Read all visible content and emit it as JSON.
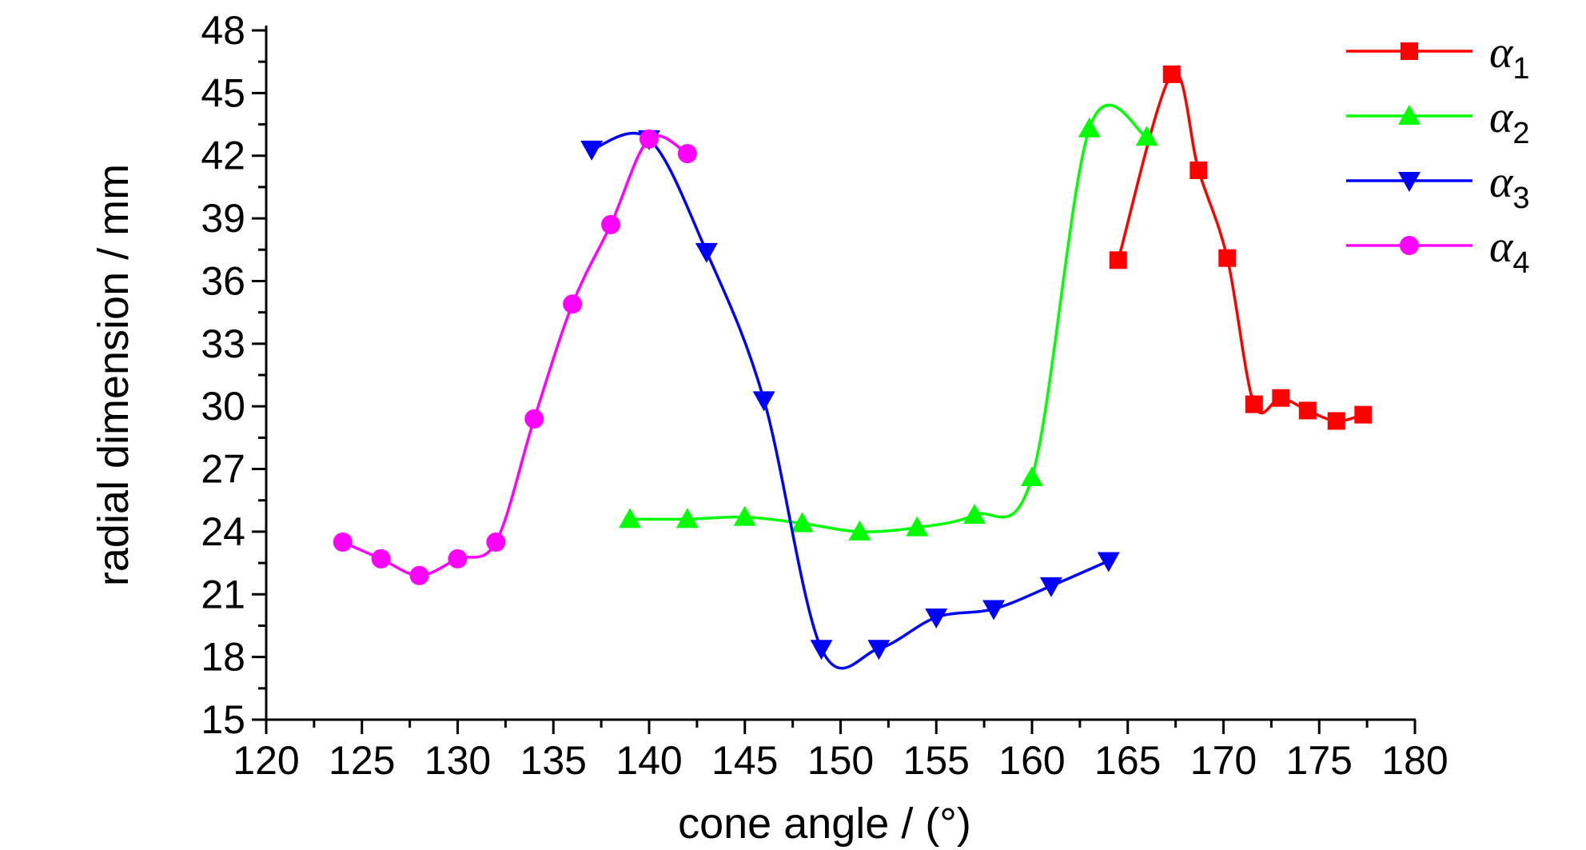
{
  "chart_data": {
    "type": "line",
    "xlabel": "cone angle / (°)",
    "ylabel": "radial dimension / mm",
    "xlim": [
      120,
      180
    ],
    "ylim": [
      15,
      48
    ],
    "xticks": [
      120,
      125,
      130,
      135,
      140,
      145,
      150,
      155,
      160,
      165,
      170,
      175,
      180
    ],
    "yticks": [
      15,
      18,
      21,
      24,
      27,
      30,
      33,
      36,
      39,
      42,
      45,
      48
    ],
    "legend_position": "top-right",
    "grid": false,
    "series": [
      {
        "name": "α1",
        "name_base": "α",
        "name_sub": "1",
        "color": "#ff0000",
        "marker": "square",
        "x": [
          164.5,
          167.3,
          168.7,
          170.2,
          171.6,
          173.0,
          174.4,
          175.9,
          177.3
        ],
        "y": [
          37.0,
          45.9,
          41.3,
          37.1,
          30.1,
          30.4,
          29.8,
          29.3,
          29.6
        ]
      },
      {
        "name": "α2",
        "name_base": "α",
        "name_sub": "2",
        "color": "#00ff00",
        "marker": "triangle-up",
        "x": [
          139,
          142,
          145,
          148,
          151,
          154,
          157,
          160,
          163,
          166
        ],
        "y": [
          24.6,
          24.6,
          24.7,
          24.4,
          24.0,
          24.2,
          24.8,
          26.6,
          43.3,
          42.9
        ]
      },
      {
        "name": "α3",
        "name_base": "α",
        "name_sub": "3",
        "color": "#0000ff",
        "marker": "triangle-down",
        "x": [
          137,
          140,
          143,
          146,
          149,
          152,
          155,
          158,
          161,
          164
        ],
        "y": [
          42.3,
          42.8,
          37.4,
          30.3,
          18.4,
          18.4,
          19.9,
          20.3,
          21.4,
          22.6
        ]
      },
      {
        "name": "α4",
        "name_base": "α",
        "name_sub": "4",
        "color": "#ff00ff",
        "marker": "circle",
        "x": [
          124,
          126,
          128,
          130,
          132,
          134,
          136,
          138,
          140,
          142
        ],
        "y": [
          23.5,
          22.7,
          21.9,
          22.7,
          23.5,
          29.4,
          34.9,
          38.7,
          42.8,
          42.1
        ]
      }
    ]
  }
}
